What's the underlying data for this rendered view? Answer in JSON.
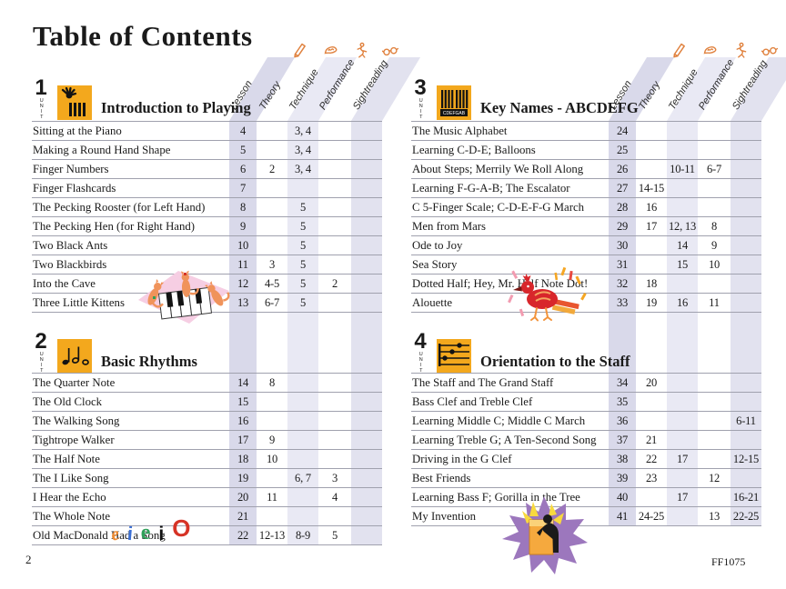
{
  "page": {
    "title": "Table of Contents",
    "unit_label": "UNIT",
    "page_number": "2",
    "catalog_number": "FF1075"
  },
  "columns": [
    "Lesson",
    "Theory",
    "Technique",
    "Performance",
    "Sightreading"
  ],
  "column_icons": [
    "pencil",
    "hand",
    "performer",
    "glasses"
  ],
  "colors": {
    "unit_icon_bg": "#f3a81d",
    "band_lesson": "#d9d9ea",
    "band_technique": "#e9e9f4",
    "band_sightreading": "#e2e2ef",
    "accent_orange": "#e0823f"
  },
  "units": [
    {
      "number": "1",
      "title": "Introduction to Playing",
      "icon": "hand-over-keys",
      "rows": [
        {
          "title": "Sitting at the Piano",
          "lesson": "4",
          "theory": "",
          "technique": "3, 4",
          "performance": "",
          "sightreading": ""
        },
        {
          "title": "Making a Round Hand Shape",
          "lesson": "5",
          "theory": "",
          "technique": "3, 4",
          "performance": "",
          "sightreading": ""
        },
        {
          "title": "Finger Numbers",
          "lesson": "6",
          "theory": "2",
          "technique": "3, 4",
          "performance": "",
          "sightreading": ""
        },
        {
          "title": "Finger Flashcards",
          "lesson": "7",
          "theory": "",
          "technique": "",
          "performance": "",
          "sightreading": ""
        },
        {
          "title": "The Pecking Rooster (for Left Hand)",
          "lesson": "8",
          "theory": "",
          "technique": "5",
          "performance": "",
          "sightreading": ""
        },
        {
          "title": "The Pecking Hen (for Right Hand)",
          "lesson": "9",
          "theory": "",
          "technique": "5",
          "performance": "",
          "sightreading": ""
        },
        {
          "title": "Two Black Ants",
          "lesson": "10",
          "theory": "",
          "technique": "5",
          "performance": "",
          "sightreading": ""
        },
        {
          "title": "Two Blackbirds",
          "lesson": "11",
          "theory": "3",
          "technique": "5",
          "performance": "",
          "sightreading": ""
        },
        {
          "title": "Into the Cave",
          "lesson": "12",
          "theory": "4-5",
          "technique": "5",
          "performance": "2",
          "sightreading": ""
        },
        {
          "title": "Three Little Kittens",
          "lesson": "13",
          "theory": "6-7",
          "technique": "5",
          "performance": "",
          "sightreading": ""
        }
      ]
    },
    {
      "number": "2",
      "title": "Basic Rhythms",
      "icon": "rhythm-notes",
      "rows": [
        {
          "title": "The Quarter Note",
          "lesson": "14",
          "theory": "8",
          "technique": "",
          "performance": "",
          "sightreading": ""
        },
        {
          "title": "The Old Clock",
          "lesson": "15",
          "theory": "",
          "technique": "",
          "performance": "",
          "sightreading": ""
        },
        {
          "title": "The Walking Song",
          "lesson": "16",
          "theory": "",
          "technique": "",
          "performance": "",
          "sightreading": ""
        },
        {
          "title": "Tightrope Walker",
          "lesson": "17",
          "theory": "9",
          "technique": "",
          "performance": "",
          "sightreading": ""
        },
        {
          "title": "The Half Note",
          "lesson": "18",
          "theory": "10",
          "technique": "",
          "performance": "",
          "sightreading": ""
        },
        {
          "title": "The I Like Song",
          "lesson": "19",
          "theory": "",
          "technique": "6, 7",
          "performance": "3",
          "sightreading": ""
        },
        {
          "title": "I Hear the Echo",
          "lesson": "20",
          "theory": "11",
          "technique": "",
          "performance": "4",
          "sightreading": ""
        },
        {
          "title": "The Whole Note",
          "lesson": "21",
          "theory": "",
          "technique": "",
          "performance": "",
          "sightreading": ""
        },
        {
          "title": "Old MacDonald Had a Song",
          "lesson": "22",
          "theory": "12-13",
          "technique": "8-9",
          "performance": "5",
          "sightreading": ""
        }
      ]
    },
    {
      "number": "3",
      "title": "Key Names - ABCDEFG",
      "icon": "piano-keys",
      "icon_text": "CDEFGAB",
      "rows": [
        {
          "title": "The Music Alphabet",
          "lesson": "24",
          "theory": "",
          "technique": "",
          "performance": "",
          "sightreading": ""
        },
        {
          "title": "Learning C-D-E; Balloons",
          "lesson": "25",
          "theory": "",
          "technique": "",
          "performance": "",
          "sightreading": ""
        },
        {
          "title": "About Steps; Merrily We Roll Along",
          "lesson": "26",
          "theory": "",
          "technique": "10-11",
          "performance": "6-7",
          "sightreading": ""
        },
        {
          "title": "Learning F-G-A-B; The Escalator",
          "lesson": "27",
          "theory": "14-15",
          "technique": "",
          "performance": "",
          "sightreading": ""
        },
        {
          "title": "C 5-Finger Scale; C-D-E-F-G March",
          "lesson": "28",
          "theory": "16",
          "technique": "",
          "performance": "",
          "sightreading": ""
        },
        {
          "title": "Men from Mars",
          "lesson": "29",
          "theory": "17",
          "technique": "12, 13",
          "performance": "8",
          "sightreading": ""
        },
        {
          "title": "Ode to Joy",
          "lesson": "30",
          "theory": "",
          "technique": "14",
          "performance": "9",
          "sightreading": ""
        },
        {
          "title": "Sea Story",
          "lesson": "31",
          "theory": "",
          "technique": "15",
          "performance": "10",
          "sightreading": ""
        },
        {
          "title": "Dotted Half; Hey, Mr. Half Note Dot!",
          "lesson": "32",
          "theory": "18",
          "technique": "",
          "performance": "",
          "sightreading": ""
        },
        {
          "title": "Alouette",
          "lesson": "33",
          "theory": "19",
          "technique": "16",
          "performance": "11",
          "sightreading": ""
        }
      ]
    },
    {
      "number": "4",
      "title": "Orientation to the Staff",
      "icon": "staff-notes",
      "rows": [
        {
          "title": "The Staff and The Grand Staff",
          "lesson": "34",
          "theory": "20",
          "technique": "",
          "performance": "",
          "sightreading": ""
        },
        {
          "title": "Bass Clef and Treble Clef",
          "lesson": "35",
          "theory": "",
          "technique": "",
          "performance": "",
          "sightreading": ""
        },
        {
          "title": "Learning Middle C; Middle C March",
          "lesson": "36",
          "theory": "",
          "technique": "",
          "performance": "",
          "sightreading": "6-11"
        },
        {
          "title": "Learning Treble G; A Ten-Second Song",
          "lesson": "37",
          "theory": "21",
          "technique": "",
          "performance": "",
          "sightreading": ""
        },
        {
          "title": "Driving in the G Clef",
          "lesson": "38",
          "theory": "22",
          "technique": "17",
          "performance": "",
          "sightreading": "12-15"
        },
        {
          "title": "Best Friends",
          "lesson": "39",
          "theory": "23",
          "technique": "",
          "performance": "12",
          "sightreading": ""
        },
        {
          "title": "Learning Bass F; Gorilla in the Tree",
          "lesson": "40",
          "theory": "",
          "technique": "17",
          "performance": "",
          "sightreading": "16-21"
        },
        {
          "title": "My Invention",
          "lesson": "41",
          "theory": "24-25",
          "technique": "",
          "performance": "13",
          "sightreading": "22-25"
        }
      ]
    }
  ],
  "decorations": {
    "eieio": [
      "e",
      "i",
      "e",
      "i",
      "O"
    ]
  }
}
